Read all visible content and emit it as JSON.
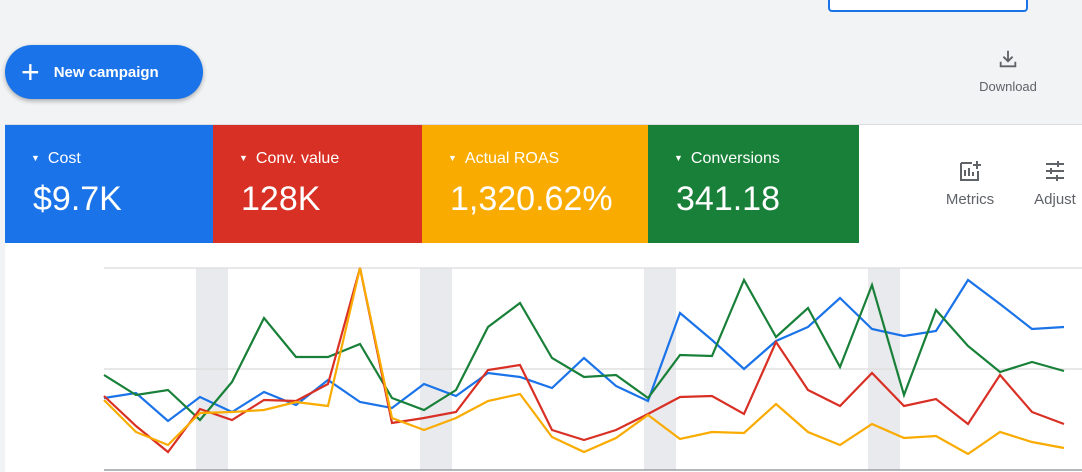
{
  "header": {
    "new_campaign_label": "New campaign",
    "download_label": "Download"
  },
  "scorecards": [
    {
      "name": "Cost",
      "value": "$9.7K",
      "color": "#1a73e8"
    },
    {
      "name": "Conv. value",
      "value": "128K",
      "color": "#d93025"
    },
    {
      "name": "Actual ROAS",
      "value": "1,320.62%",
      "color": "#f9ab00"
    },
    {
      "name": "Conversions",
      "value": "341.18",
      "color": "#188038"
    }
  ],
  "tools": {
    "metrics_label": "Metrics",
    "adjust_label": "Adjust"
  },
  "chart_data": {
    "type": "line",
    "title": "",
    "xlabel": "",
    "ylabel": "",
    "ylim": [
      0,
      202
    ],
    "grid": true,
    "weekend_bands_at_index": [
      3,
      10,
      17,
      24
    ],
    "series": [
      {
        "name": "Cost",
        "color": "#1a73e8",
        "values": [
          72,
          77,
          49,
          73,
          58,
          78,
          65,
          90,
          68,
          62,
          86,
          74,
          97,
          93,
          82,
          112,
          84,
          69,
          157,
          130,
          101,
          129,
          143,
          172,
          141,
          134,
          139,
          190,
          166,
          141,
          143
        ]
      },
      {
        "name": "Conversions",
        "color": "#188038",
        "values": [
          95,
          75,
          80,
          50,
          88,
          152,
          113,
          113,
          126,
          72,
          60,
          80,
          143,
          167,
          112,
          93,
          95,
          72,
          115,
          114,
          190,
          133,
          162,
          103,
          185,
          75,
          160,
          124,
          98,
          108,
          99
        ]
      },
      {
        "name": "Conv. value",
        "color": "#d93025",
        "values": [
          74,
          44,
          18,
          61,
          50,
          70,
          69,
          86,
          202,
          47,
          52,
          58,
          100,
          105,
          40,
          30,
          40,
          56,
          73,
          74,
          56,
          128,
          80,
          64,
          97,
          64,
          71,
          46,
          95,
          58,
          46
        ]
      },
      {
        "name": "Actual ROAS",
        "color": "#f9ab00",
        "values": [
          70,
          38,
          25,
          57,
          58,
          60,
          68,
          64,
          202,
          52,
          40,
          52,
          69,
          76,
          33,
          18,
          32,
          55,
          31,
          38,
          37,
          66,
          38,
          25,
          46,
          32,
          34,
          16,
          38,
          28,
          22
        ]
      }
    ]
  }
}
